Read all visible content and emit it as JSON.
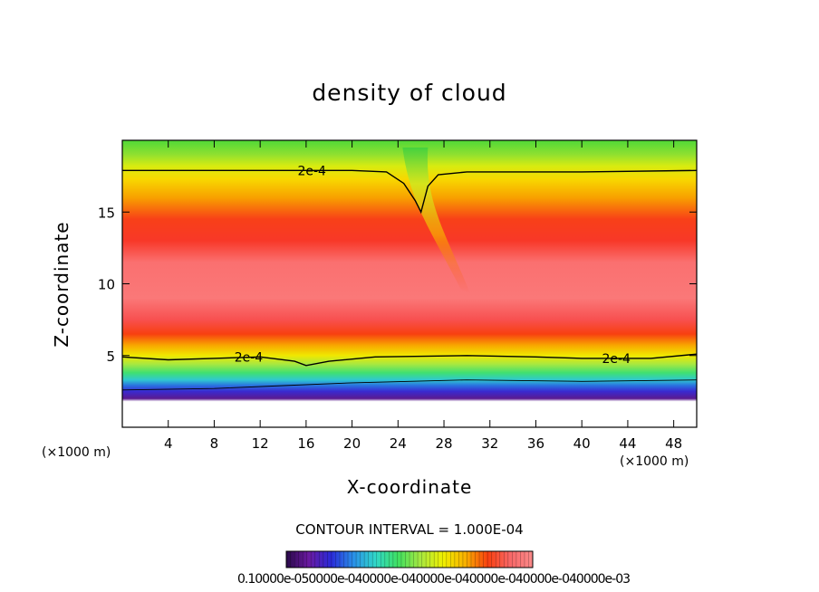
{
  "chart_data": {
    "type": "heatmap",
    "title": "density of cloud",
    "xlabel": "X-coordinate",
    "ylabel": "Z-coordinate",
    "x_unit_left": "(×1000 m)",
    "x_unit_right": "(×1000 m)",
    "xlim": [
      0,
      50
    ],
    "ylim": [
      0,
      20
    ],
    "x_ticks": [
      4,
      8,
      12,
      16,
      20,
      24,
      28,
      32,
      36,
      40,
      44,
      48
    ],
    "y_ticks": [
      5,
      10,
      15
    ],
    "contour_interval_text": "CONTOUR INTERVAL = 1.000E-04",
    "colorbar_labels_text": "0.10000e-050000e-040000e-040000e-040000e-040000e-040000e-03",
    "colorbar_colors": [
      "#2a0a4a",
      "#6a1aa0",
      "#2a2ad8",
      "#2a90e8",
      "#30d8c8",
      "#40e060",
      "#a8e840",
      "#f0f000",
      "#f8b000",
      "#f84010",
      "#f86868",
      "#fa8a8a"
    ],
    "contour_lines": [
      {
        "label": "2e-4",
        "label_x": 16.5,
        "points": [
          [
            0,
            17.9
          ],
          [
            10,
            17.9
          ],
          [
            20,
            17.9
          ],
          [
            23,
            17.8
          ],
          [
            24.5,
            17.0
          ],
          [
            25.5,
            15.8
          ],
          [
            26,
            15.0
          ],
          [
            26.6,
            16.8
          ],
          [
            27.5,
            17.6
          ],
          [
            30,
            17.8
          ],
          [
            40,
            17.8
          ],
          [
            50,
            17.9
          ]
        ]
      },
      {
        "label": "2e-4",
        "label_x": 11,
        "label2_x": 43,
        "points": [
          [
            0,
            4.9
          ],
          [
            4,
            4.7
          ],
          [
            8,
            4.8
          ],
          [
            12,
            4.9
          ],
          [
            15,
            4.6
          ],
          [
            16,
            4.3
          ],
          [
            18,
            4.6
          ],
          [
            22,
            4.9
          ],
          [
            30,
            5.0
          ],
          [
            36,
            4.9
          ],
          [
            40,
            4.8
          ],
          [
            46,
            4.8
          ],
          [
            50,
            5.1
          ]
        ]
      },
      {
        "label": "",
        "points": [
          [
            0,
            2.6
          ],
          [
            8,
            2.7
          ],
          [
            14,
            2.9
          ],
          [
            20,
            3.1
          ],
          [
            30,
            3.3
          ],
          [
            40,
            3.2
          ],
          [
            50,
            3.3
          ]
        ]
      }
    ],
    "vertical_profile": [
      {
        "z": 1.0,
        "color": "#ffffff"
      },
      {
        "z": 1.8,
        "color": "#ffffff"
      },
      {
        "z": 2.0,
        "color": "#5a1a90"
      },
      {
        "z": 2.5,
        "color": "#3a2ad0"
      },
      {
        "z": 2.9,
        "color": "#2a70e0"
      },
      {
        "z": 3.3,
        "color": "#30c8d0"
      },
      {
        "z": 3.8,
        "color": "#40e070"
      },
      {
        "z": 4.4,
        "color": "#a8e840"
      },
      {
        "z": 5.0,
        "color": "#f0e800"
      },
      {
        "z": 5.7,
        "color": "#f8a800"
      },
      {
        "z": 6.5,
        "color": "#f84010"
      },
      {
        "z": 7.5,
        "color": "#f85050"
      },
      {
        "z": 9.0,
        "color": "#fa7878"
      },
      {
        "z": 11.5,
        "color": "#fa7070"
      },
      {
        "z": 13.0,
        "color": "#f83828"
      },
      {
        "z": 14.5,
        "color": "#f84018"
      },
      {
        "z": 16.0,
        "color": "#f8a000"
      },
      {
        "z": 17.3,
        "color": "#f8d800"
      },
      {
        "z": 18.2,
        "color": "#d8ec10"
      },
      {
        "z": 19.0,
        "color": "#90e030"
      },
      {
        "z": 20.0,
        "color": "#50d838"
      }
    ],
    "plume": {
      "top_x": 25.5,
      "top_z": 19.5,
      "bottom_x": 29.8,
      "bottom_z": 9.6
    }
  }
}
